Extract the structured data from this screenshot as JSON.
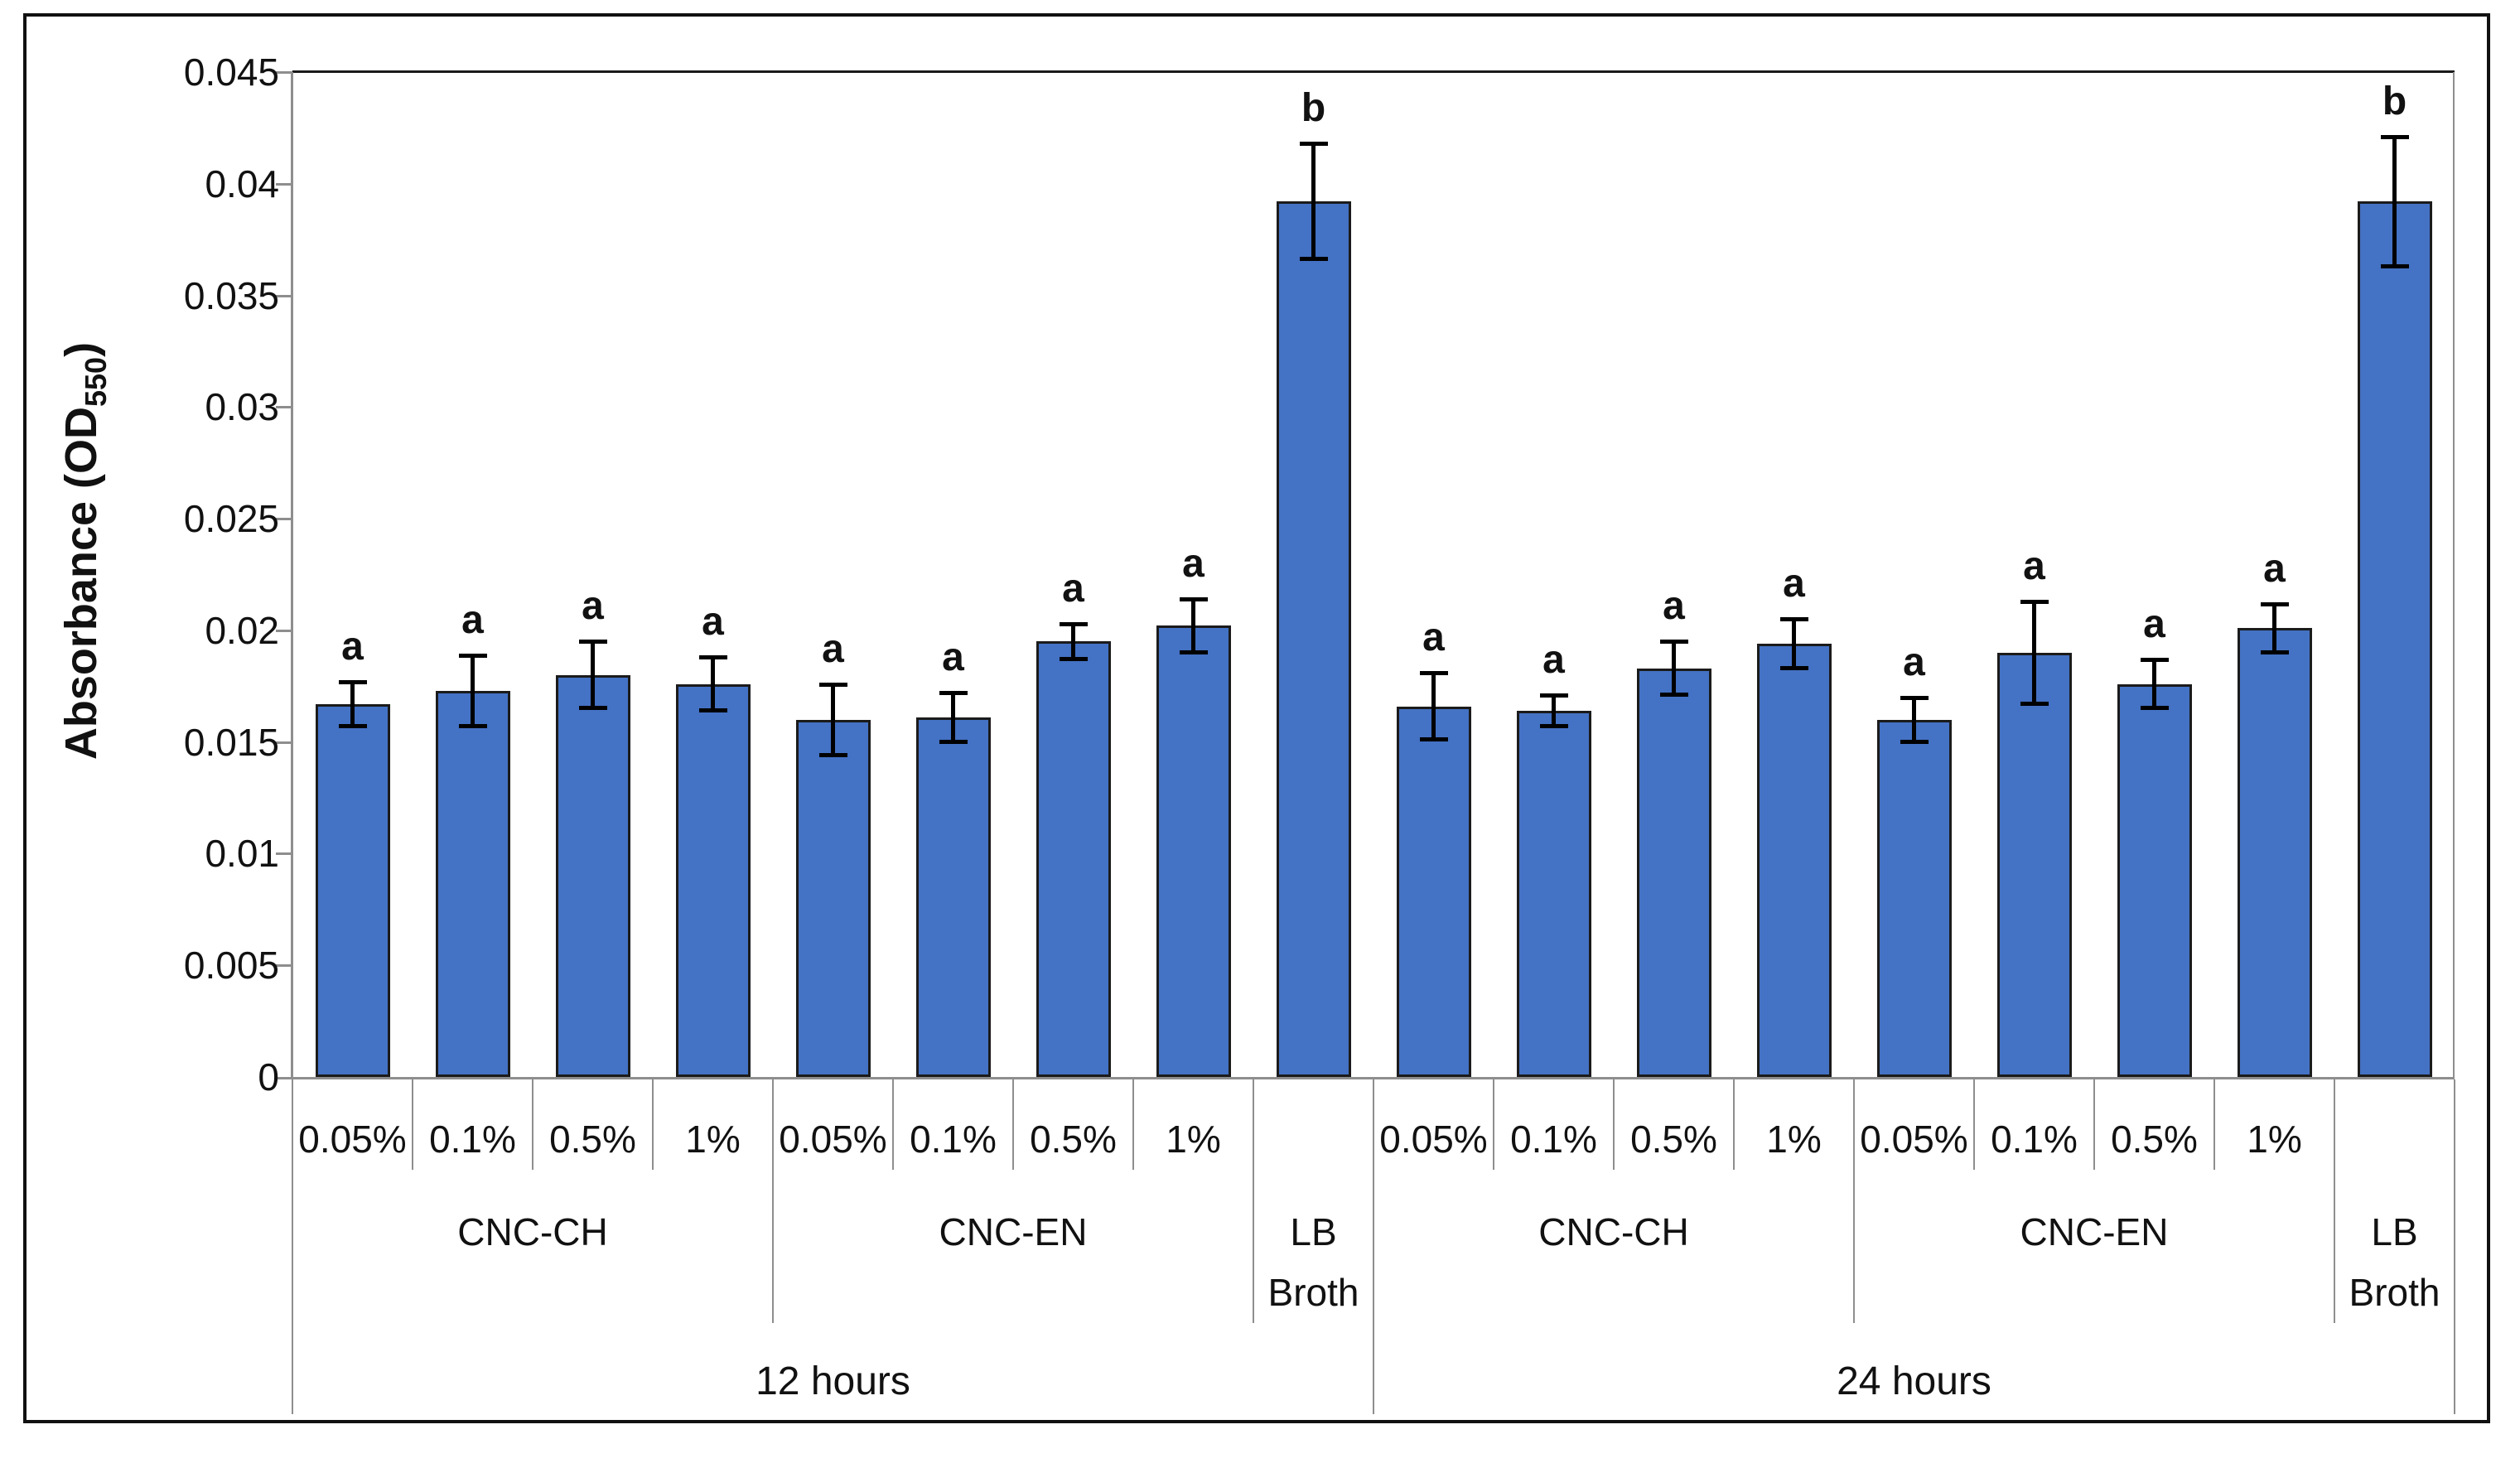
{
  "colors": {
    "bar_fill": "#4472C4",
    "bar_border": "#1b1b1b",
    "axis_line": "#8e8e8e",
    "plot_top_border": "#1a1a1a",
    "error_bar": "#000000",
    "text": "#111111"
  },
  "y_axis": {
    "title_main": "Absorbance (OD",
    "title_sub": "550",
    "title_end": ")",
    "tick_labels": [
      "0",
      "0.005",
      "0.01",
      "0.015",
      "0.02",
      "0.025",
      "0.03",
      "0.035",
      "0.04",
      "0.045"
    ],
    "min": 0,
    "max": 0.045,
    "step": 0.005
  },
  "chart_data": {
    "type": "bar",
    "title": "",
    "xlabel": "",
    "ylabel": "Absorbance (OD550)",
    "ylim": [
      0,
      0.045
    ],
    "grid": false,
    "legend": false,
    "bar_color": "#4472C4",
    "groups": [
      {
        "time_label": "12 hours",
        "subgroups": [
          {
            "label": "CNC-CH",
            "label_lines": [
              "CNC-CH"
            ],
            "bars": [
              {
                "label": "0.05%",
                "value": 0.0167,
                "error": 0.001,
                "letter": "a"
              },
              {
                "label": "0.1%",
                "value": 0.0173,
                "error": 0.0016,
                "letter": "a"
              },
              {
                "label": "0.5%",
                "value": 0.018,
                "error": 0.0015,
                "letter": "a"
              },
              {
                "label": "1%",
                "value": 0.0176,
                "error": 0.0012,
                "letter": "a"
              }
            ]
          },
          {
            "label": "CNC-EN",
            "label_lines": [
              "CNC-EN"
            ],
            "bars": [
              {
                "label": "0.05%",
                "value": 0.016,
                "error": 0.0016,
                "letter": "a"
              },
              {
                "label": "0.1%",
                "value": 0.0161,
                "error": 0.0011,
                "letter": "a"
              },
              {
                "label": "0.5%",
                "value": 0.0195,
                "error": 0.0008,
                "letter": "a"
              },
              {
                "label": "1%",
                "value": 0.0202,
                "error": 0.0012,
                "letter": "a"
              }
            ]
          },
          {
            "label": "LB Broth",
            "label_lines": [
              "LB",
              "Broth"
            ],
            "bars": [
              {
                "label": "",
                "value": 0.0392,
                "error": 0.0026,
                "letter": "b"
              }
            ]
          }
        ]
      },
      {
        "time_label": "24 hours",
        "subgroups": [
          {
            "label": "CNC-CH",
            "label_lines": [
              "CNC-CH"
            ],
            "bars": [
              {
                "label": "0.05%",
                "value": 0.0166,
                "error": 0.0015,
                "letter": "a"
              },
              {
                "label": "0.1%",
                "value": 0.0164,
                "error": 0.0007,
                "letter": "a"
              },
              {
                "label": "0.5%",
                "value": 0.0183,
                "error": 0.0012,
                "letter": "a"
              },
              {
                "label": "1%",
                "value": 0.0194,
                "error": 0.0011,
                "letter": "a"
              }
            ]
          },
          {
            "label": "CNC-EN",
            "label_lines": [
              "CNC-EN"
            ],
            "bars": [
              {
                "label": "0.05%",
                "value": 0.016,
                "error": 0.001,
                "letter": "a"
              },
              {
                "label": "0.1%",
                "value": 0.019,
                "error": 0.0023,
                "letter": "a"
              },
              {
                "label": "0.5%",
                "value": 0.0176,
                "error": 0.0011,
                "letter": "a"
              },
              {
                "label": "1%",
                "value": 0.0201,
                "error": 0.0011,
                "letter": "a"
              }
            ]
          },
          {
            "label": "LB Broth",
            "label_lines": [
              "LB",
              "Broth"
            ],
            "bars": [
              {
                "label": "",
                "value": 0.0392,
                "error": 0.0029,
                "letter": "b"
              }
            ]
          }
        ]
      }
    ]
  }
}
